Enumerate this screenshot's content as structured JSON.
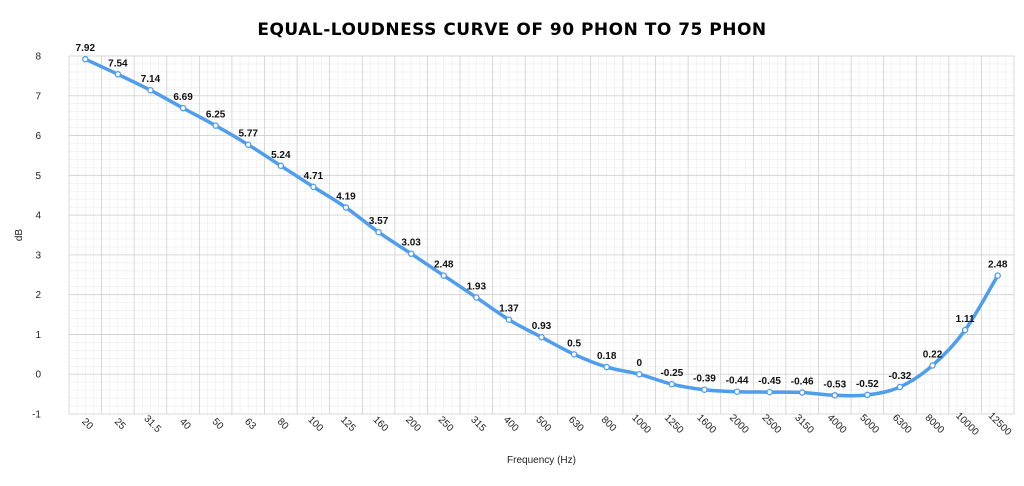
{
  "chart_data": {
    "type": "line",
    "title": "EQUAL-LOUDNESS CURVE OF 90 PHON TO 75 PHON",
    "xlabel": "Frequency (Hz)",
    "ylabel": "dB",
    "ylim": [
      -1,
      8
    ],
    "yticks": [
      "-1",
      "0",
      "1",
      "2",
      "3",
      "4",
      "5",
      "6",
      "7",
      "8"
    ],
    "categories": [
      "20",
      "25",
      "31.5",
      "40",
      "50",
      "63",
      "80",
      "100",
      "125",
      "160",
      "200",
      "250",
      "315",
      "400",
      "500",
      "630",
      "800",
      "1000",
      "1250",
      "1600",
      "2000",
      "2500",
      "3150",
      "4000",
      "5000",
      "6300",
      "8000",
      "10000",
      "12500"
    ],
    "series": [
      {
        "values": [
          7.92,
          7.54,
          7.14,
          6.69,
          6.25,
          5.77,
          5.24,
          4.71,
          4.19,
          3.57,
          3.03,
          2.48,
          1.93,
          1.37,
          0.93,
          0.5,
          0.18,
          0,
          -0.25,
          -0.39,
          -0.44,
          -0.45,
          -0.46,
          -0.53,
          -0.52,
          -0.32,
          0.22,
          1.11,
          2.48
        ],
        "labels": [
          "7.92",
          "7.54",
          "7.14",
          "6.69",
          "6.25",
          "5.77",
          "5.24",
          "4.71",
          "4.19",
          "3.57",
          "3.03",
          "2.48",
          "1.93",
          "1.37",
          "0.93",
          "0.5",
          "0.18",
          "0",
          "-0.25",
          "-0.39",
          "-0.44",
          "-0.45",
          "-0.46",
          "-0.53",
          "-0.52",
          "-0.32",
          "0.22",
          "1.11",
          "2.48"
        ]
      }
    ],
    "line_color": "#4f9ded",
    "grid": true,
    "legend": "none"
  }
}
